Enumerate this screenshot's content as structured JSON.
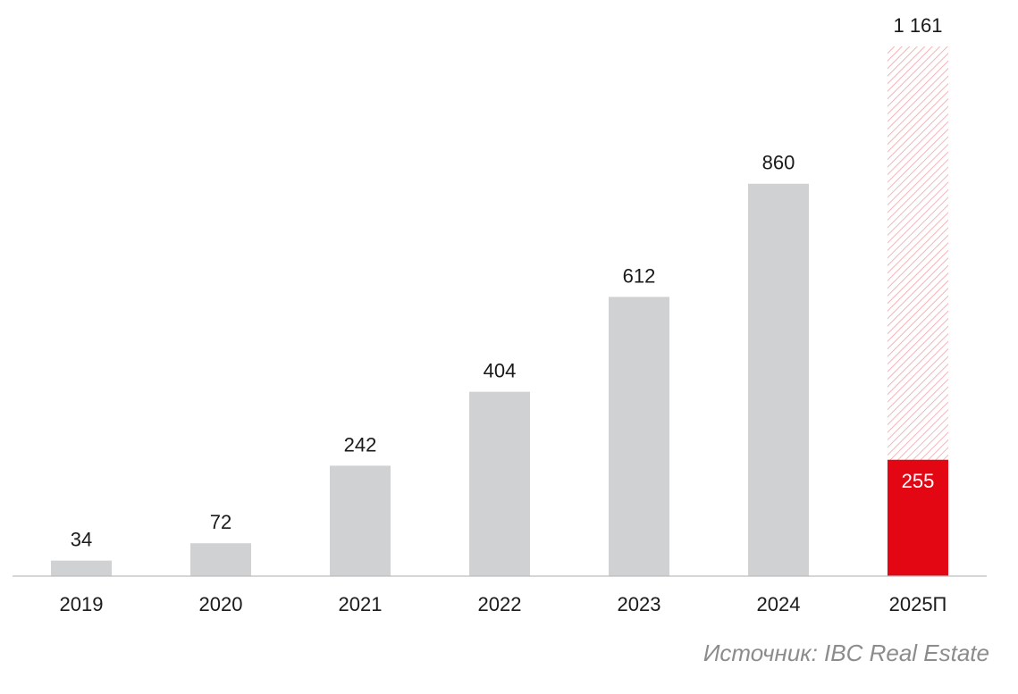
{
  "chart_data": {
    "type": "bar",
    "categories": [
      "2019",
      "2020",
      "2021",
      "2022",
      "2023",
      "2024",
      "2025П"
    ],
    "values": [
      34,
      72,
      242,
      404,
      612,
      860,
      255
    ],
    "value_labels": [
      "34",
      "72",
      "242",
      "404",
      "612",
      "860",
      "255"
    ],
    "forecast": {
      "category": "2025П",
      "total": 1161,
      "total_label": "1 161",
      "actual": 255
    },
    "ylim": [
      0,
      1161
    ],
    "grid": false,
    "legend": "none",
    "colors": {
      "bar": "#d0d1d3",
      "highlight": "#e30613",
      "hatch": "#f2a3a8",
      "axis": "#bdbdbd",
      "text": "#1a1a1a"
    }
  },
  "source": "Источник: IBC Real Estate"
}
